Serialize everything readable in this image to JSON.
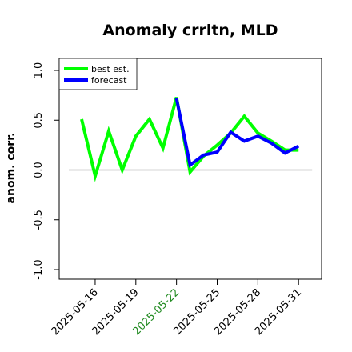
{
  "chart_data": {
    "type": "line",
    "title": "Anomaly crrltn, MLD",
    "xlabel": "",
    "ylabel": "anom. corr.",
    "ylim": [
      -1.0,
      1.0
    ],
    "yticks": [
      "-1.0",
      "-0.5",
      "0.0",
      "0.5",
      "1.0"
    ],
    "xticks": [
      "2025-05-16",
      "2025-05-19",
      "2025-05-22",
      "2025-05-25",
      "2025-05-28",
      "2025-05-31"
    ],
    "highlight_tick": "2025-05-22",
    "highlight_color": "#228B22",
    "x": [
      "2025-05-15",
      "2025-05-16",
      "2025-05-17",
      "2025-05-18",
      "2025-05-19",
      "2025-05-20",
      "2025-05-21",
      "2025-05-22",
      "2025-05-23",
      "2025-05-24",
      "2025-05-25",
      "2025-05-26",
      "2025-05-27",
      "2025-05-28",
      "2025-05-29",
      "2025-05-30",
      "2025-05-31"
    ],
    "reference_line": 0.0,
    "legend_position": "top-left",
    "series": [
      {
        "name": "best est.",
        "color": "#00ff00",
        "values": [
          0.51,
          -0.06,
          0.39,
          0.0,
          0.34,
          0.51,
          0.22,
          0.73,
          -0.02,
          0.14,
          0.25,
          0.37,
          0.54,
          0.37,
          0.29,
          0.2,
          0.2
        ]
      },
      {
        "name": "forecast",
        "color": "#0000ff",
        "values": [
          null,
          null,
          null,
          null,
          null,
          null,
          null,
          0.72,
          0.05,
          0.15,
          0.18,
          0.38,
          0.29,
          0.34,
          0.27,
          0.17,
          0.24
        ]
      }
    ]
  }
}
